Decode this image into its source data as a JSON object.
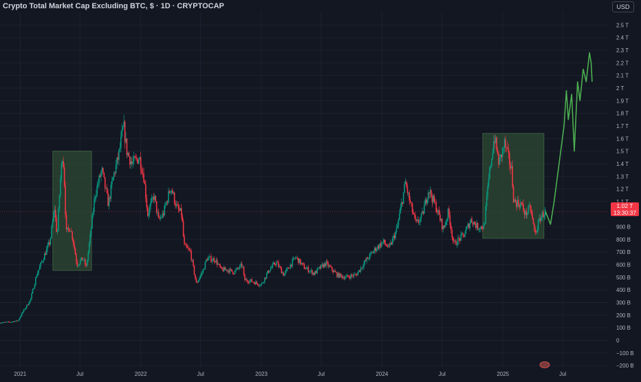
{
  "header": {
    "title": "Crypto Total Market Cap Excluding BTC, $ · 1D · CRYPTOCAP",
    "currency_badge": "USD"
  },
  "price_label": {
    "value": "1.02 T",
    "countdown": "13:30:37"
  },
  "colors": {
    "background": "#131722",
    "grid": "#1e2230",
    "up": "#089981",
    "down": "#f23645",
    "projection": "#4caf50",
    "box_fill": "#2e4a33",
    "box_stroke": "#3b5e40",
    "axis_text": "#b2b5be",
    "title_text": "#d1d4dc"
  },
  "chart_data": {
    "type": "candlestick",
    "title": "Crypto Total Market Cap Excluding BTC, $ · 1D · CRYPTOCAP",
    "y_unit": "USD",
    "ylim": [
      -210000000000,
      2600000000000
    ],
    "y_ticks": [
      {
        "value": 2500000000000,
        "label": "2.5 T"
      },
      {
        "value": 2400000000000,
        "label": "2.4 T"
      },
      {
        "value": 2300000000000,
        "label": "2.3 T"
      },
      {
        "value": 2200000000000,
        "label": "2.2 T"
      },
      {
        "value": 2100000000000,
        "label": "2.1 T"
      },
      {
        "value": 2000000000000,
        "label": "2 T"
      },
      {
        "value": 1900000000000,
        "label": "1.9 T"
      },
      {
        "value": 1800000000000,
        "label": "1.8 T"
      },
      {
        "value": 1700000000000,
        "label": "1.7 T"
      },
      {
        "value": 1600000000000,
        "label": "1.6 T"
      },
      {
        "value": 1500000000000,
        "label": "1.5 T"
      },
      {
        "value": 1400000000000,
        "label": "1.4 T"
      },
      {
        "value": 1300000000000,
        "label": "1.3 T"
      },
      {
        "value": 1200000000000,
        "label": "1.2 T"
      },
      {
        "value": 1100000000000,
        "label": "1.1 T"
      },
      {
        "value": 900000000000,
        "label": "900 B"
      },
      {
        "value": 800000000000,
        "label": "800 B"
      },
      {
        "value": 700000000000,
        "label": "700 B"
      },
      {
        "value": 600000000000,
        "label": "600 B"
      },
      {
        "value": 500000000000,
        "label": "500 B"
      },
      {
        "value": 400000000000,
        "label": "400 B"
      },
      {
        "value": 300000000000,
        "label": "300 B"
      },
      {
        "value": 200000000000,
        "label": "200 B"
      },
      {
        "value": 100000000000,
        "label": "100 B"
      },
      {
        "value": 0,
        "label": "0"
      },
      {
        "value": -100000000000,
        "label": "−100 B"
      },
      {
        "value": -200000000000,
        "label": "−200 B"
      }
    ],
    "xlim": [
      "2020-11-01",
      "2025-11-15"
    ],
    "x_ticks": [
      {
        "date": "2021-01-01",
        "label": "2021"
      },
      {
        "date": "2021-07-01",
        "label": "Jul"
      },
      {
        "date": "2022-01-01",
        "label": "2022"
      },
      {
        "date": "2022-07-01",
        "label": "Jul"
      },
      {
        "date": "2023-01-01",
        "label": "2023"
      },
      {
        "date": "2023-07-01",
        "label": "Jul"
      },
      {
        "date": "2024-01-01",
        "label": "2024"
      },
      {
        "date": "2024-07-01",
        "label": "Jul"
      },
      {
        "date": "2025-01-01",
        "label": "2025"
      },
      {
        "date": "2025-07-01",
        "label": "Jul"
      }
    ],
    "price_series": [
      [
        "2020-11-01",
        140000000000
      ],
      [
        "2020-12-01",
        145000000000
      ],
      [
        "2020-12-25",
        155000000000
      ],
      [
        "2021-01-10",
        230000000000
      ],
      [
        "2021-02-01",
        320000000000
      ],
      [
        "2021-02-20",
        520000000000
      ],
      [
        "2021-03-10",
        640000000000
      ],
      [
        "2021-04-01",
        780000000000
      ],
      [
        "2021-04-15",
        1050000000000
      ],
      [
        "2021-04-23",
        820000000000
      ],
      [
        "2021-05-02",
        1250000000000
      ],
      [
        "2021-05-10",
        1500000000000
      ],
      [
        "2021-05-16",
        1200000000000
      ],
      [
        "2021-05-20",
        850000000000
      ],
      [
        "2021-06-01",
        900000000000
      ],
      [
        "2021-06-10",
        800000000000
      ],
      [
        "2021-06-22",
        600000000000
      ],
      [
        "2021-07-10",
        650000000000
      ],
      [
        "2021-07-20",
        580000000000
      ],
      [
        "2021-08-01",
        820000000000
      ],
      [
        "2021-08-15",
        1150000000000
      ],
      [
        "2021-09-05",
        1350000000000
      ],
      [
        "2021-09-25",
        1080000000000
      ],
      [
        "2021-10-10",
        1300000000000
      ],
      [
        "2021-10-25",
        1450000000000
      ],
      [
        "2021-11-10",
        1700000000000
      ],
      [
        "2021-11-20",
        1500000000000
      ],
      [
        "2021-12-05",
        1400000000000
      ],
      [
        "2021-12-28",
        1450000000000
      ],
      [
        "2022-01-10",
        1300000000000
      ],
      [
        "2022-01-22",
        1000000000000
      ],
      [
        "2022-02-10",
        1150000000000
      ],
      [
        "2022-02-24",
        950000000000
      ],
      [
        "2022-03-10",
        1000000000000
      ],
      [
        "2022-04-02",
        1220000000000
      ],
      [
        "2022-04-20",
        1050000000000
      ],
      [
        "2022-05-05",
        1000000000000
      ],
      [
        "2022-05-12",
        750000000000
      ],
      [
        "2022-05-31",
        700000000000
      ],
      [
        "2022-06-18",
        450000000000
      ],
      [
        "2022-07-08",
        550000000000
      ],
      [
        "2022-07-20",
        650000000000
      ],
      [
        "2022-08-14",
        640000000000
      ],
      [
        "2022-09-01",
        560000000000
      ],
      [
        "2022-09-20",
        560000000000
      ],
      [
        "2022-10-10",
        540000000000
      ],
      [
        "2022-11-05",
        600000000000
      ],
      [
        "2022-11-10",
        480000000000
      ],
      [
        "2022-12-01",
        470000000000
      ],
      [
        "2022-12-31",
        440000000000
      ],
      [
        "2023-01-25",
        560000000000
      ],
      [
        "2023-02-15",
        620000000000
      ],
      [
        "2023-03-10",
        520000000000
      ],
      [
        "2023-04-15",
        660000000000
      ],
      [
        "2023-05-10",
        580000000000
      ],
      [
        "2023-06-10",
        530000000000
      ],
      [
        "2023-06-30",
        580000000000
      ],
      [
        "2023-07-15",
        610000000000
      ],
      [
        "2023-08-18",
        520000000000
      ],
      [
        "2023-09-11",
        500000000000
      ],
      [
        "2023-10-15",
        520000000000
      ],
      [
        "2023-11-10",
        620000000000
      ],
      [
        "2023-12-10",
        720000000000
      ],
      [
        "2024-01-05",
        780000000000
      ],
      [
        "2024-01-23",
        730000000000
      ],
      [
        "2024-02-15",
        880000000000
      ],
      [
        "2024-03-12",
        1250000000000
      ],
      [
        "2024-03-25",
        1100000000000
      ],
      [
        "2024-04-13",
        920000000000
      ],
      [
        "2024-05-01",
        980000000000
      ],
      [
        "2024-05-21",
        1200000000000
      ],
      [
        "2024-06-15",
        1040000000000
      ],
      [
        "2024-07-05",
        880000000000
      ],
      [
        "2024-07-20",
        1020000000000
      ],
      [
        "2024-08-05",
        760000000000
      ],
      [
        "2024-09-06",
        840000000000
      ],
      [
        "2024-09-27",
        960000000000
      ],
      [
        "2024-10-15",
        900000000000
      ],
      [
        "2024-11-05",
        900000000000
      ],
      [
        "2024-11-20",
        1300000000000
      ],
      [
        "2024-12-06",
        1620000000000
      ],
      [
        "2024-12-20",
        1400000000000
      ],
      [
        "2025-01-06",
        1560000000000
      ],
      [
        "2025-01-27",
        1350000000000
      ],
      [
        "2025-02-03",
        1100000000000
      ],
      [
        "2025-02-25",
        1080000000000
      ],
      [
        "2025-03-10",
        1000000000000
      ],
      [
        "2025-03-25",
        1050000000000
      ],
      [
        "2025-04-08",
        840000000000
      ],
      [
        "2025-04-25",
        980000000000
      ],
      [
        "2025-05-10",
        1020000000000
      ]
    ],
    "projection_series": [
      [
        "2025-05-10",
        1020000000000
      ],
      [
        "2025-05-25",
        920000000000
      ],
      [
        "2025-06-05",
        1100000000000
      ],
      [
        "2025-06-20",
        1400000000000
      ],
      [
        "2025-07-05",
        1700000000000
      ],
      [
        "2025-07-12",
        1980000000000
      ],
      [
        "2025-07-18",
        1750000000000
      ],
      [
        "2025-07-28",
        1950000000000
      ],
      [
        "2025-08-05",
        1500000000000
      ],
      [
        "2025-08-15",
        2050000000000
      ],
      [
        "2025-08-22",
        1900000000000
      ],
      [
        "2025-09-01",
        2150000000000
      ],
      [
        "2025-09-10",
        2050000000000
      ],
      [
        "2025-09-20",
        2280000000000
      ],
      [
        "2025-09-25",
        2200000000000
      ],
      [
        "2025-09-28",
        2050000000000
      ]
    ],
    "boxes": [
      {
        "from": "2021-04-10",
        "to": "2021-08-05",
        "top": 1500000000000,
        "bottom": 555000000000
      },
      {
        "from": "2024-11-01",
        "to": "2025-05-05",
        "top": 1640000000000,
        "bottom": 810000000000
      }
    ],
    "last_price": 1020000000000,
    "grid": true
  }
}
